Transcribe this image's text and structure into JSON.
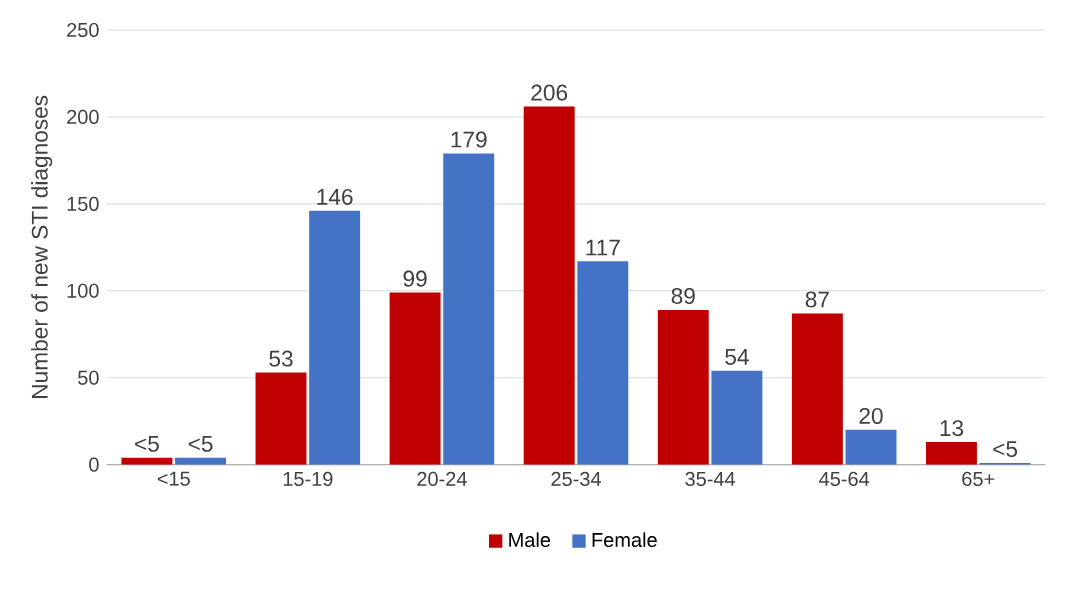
{
  "chart_data": {
    "type": "bar",
    "ylabel": "Number of new STI diagnoses",
    "categories": [
      "<15",
      "15-19",
      "20-24",
      "25-34",
      "35-44",
      "45-64",
      "65+"
    ],
    "series": [
      {
        "name": "Male",
        "color": "#c00000",
        "values": [
          4,
          53,
          99,
          206,
          89,
          87,
          13
        ],
        "value_labels": [
          "<5",
          "53",
          "99",
          "206",
          "89",
          "87",
          "13"
        ]
      },
      {
        "name": "Female",
        "color": "#4472c4",
        "values": [
          4,
          146,
          179,
          117,
          54,
          20,
          1
        ],
        "value_labels": [
          "<5",
          "146",
          "179",
          "117",
          "54",
          "20",
          "<5"
        ]
      }
    ],
    "ylim": [
      0,
      250
    ],
    "yticks": [
      0,
      50,
      100,
      150,
      200,
      250
    ],
    "grid": "y",
    "legend": "bottom"
  }
}
